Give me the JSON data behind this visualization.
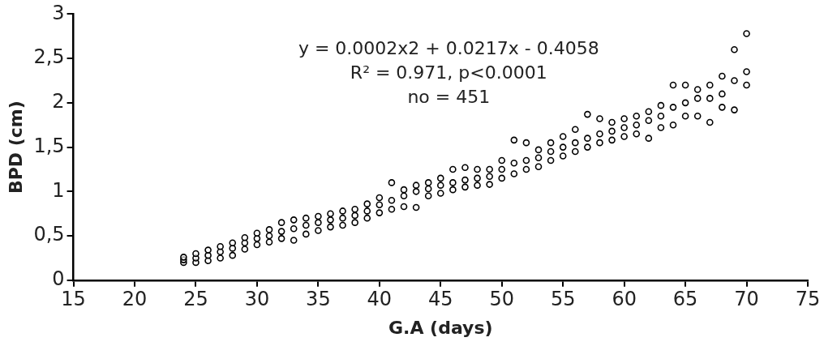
{
  "chart_data": {
    "type": "scatter",
    "xlabel": "G.A (days)",
    "ylabel": "BPD (cm)",
    "annotations": [
      "y = 0.0002x2 + 0.0217x - 0.4058",
      "R² = 0.971, p<0.0001",
      "no = 451"
    ],
    "xlim": [
      15,
      75
    ],
    "xticks": [
      15,
      20,
      25,
      30,
      35,
      40,
      45,
      50,
      55,
      60,
      65,
      70,
      75
    ],
    "ylim": [
      0,
      3
    ],
    "yticks": [
      0,
      {
        "value": 0.5,
        "label": "0,5"
      },
      1,
      {
        "value": 1.5,
        "label": "1,5"
      },
      2,
      {
        "value": 2.5,
        "label": "2,5"
      },
      3
    ],
    "grid": false,
    "legend": false,
    "marker": "circle",
    "series": [
      {
        "color": "#000000",
        "x": [
          24,
          24,
          24,
          25,
          25,
          25,
          26,
          26,
          26,
          27,
          27,
          27,
          28,
          28,
          28,
          29,
          29,
          29,
          30,
          30,
          30,
          31,
          31,
          31,
          32,
          32,
          32,
          33,
          33,
          33,
          34,
          34,
          34,
          35,
          35,
          35,
          36,
          36,
          36,
          37,
          37,
          37,
          38,
          38,
          38,
          39,
          39,
          39,
          40,
          40,
          40,
          41,
          41,
          41,
          42,
          42,
          42,
          43,
          43,
          43,
          44,
          44,
          44,
          45,
          45,
          45,
          46,
          46,
          46,
          47,
          47,
          47,
          48,
          48,
          48,
          49,
          49,
          49,
          50,
          50,
          50,
          51,
          51,
          51,
          52,
          52,
          52,
          53,
          53,
          53,
          54,
          54,
          54,
          55,
          55,
          55,
          56,
          56,
          56,
          57,
          57,
          57,
          58,
          58,
          58,
          59,
          59,
          59,
          60,
          60,
          60,
          61,
          61,
          61,
          62,
          62,
          62,
          63,
          63,
          63,
          64,
          64,
          64,
          65,
          65,
          65,
          66,
          66,
          66,
          67,
          67,
          67,
          68,
          68,
          68,
          69,
          69,
          69,
          70,
          70,
          70
        ],
        "values": [
          0.2,
          0.23,
          0.26,
          0.2,
          0.25,
          0.3,
          0.22,
          0.28,
          0.34,
          0.25,
          0.32,
          0.38,
          0.28,
          0.36,
          0.42,
          0.35,
          0.42,
          0.48,
          0.4,
          0.47,
          0.53,
          0.43,
          0.5,
          0.57,
          0.47,
          0.55,
          0.65,
          0.45,
          0.58,
          0.68,
          0.52,
          0.62,
          0.7,
          0.56,
          0.65,
          0.72,
          0.6,
          0.68,
          0.75,
          0.62,
          0.7,
          0.78,
          0.65,
          0.73,
          0.8,
          0.7,
          0.78,
          0.86,
          0.76,
          0.85,
          0.93,
          0.8,
          0.9,
          1.1,
          0.83,
          0.95,
          1.02,
          0.82,
          1.0,
          1.07,
          0.95,
          1.03,
          1.1,
          0.98,
          1.07,
          1.15,
          1.02,
          1.1,
          1.25,
          1.05,
          1.13,
          1.27,
          1.07,
          1.15,
          1.25,
          1.08,
          1.17,
          1.25,
          1.15,
          1.25,
          1.35,
          1.2,
          1.32,
          1.58,
          1.25,
          1.35,
          1.55,
          1.28,
          1.38,
          1.47,
          1.35,
          1.45,
          1.55,
          1.4,
          1.5,
          1.62,
          1.45,
          1.55,
          1.7,
          1.5,
          1.6,
          1.87,
          1.55,
          1.65,
          1.82,
          1.58,
          1.68,
          1.78,
          1.62,
          1.72,
          1.82,
          1.65,
          1.75,
          1.85,
          1.6,
          1.8,
          1.9,
          1.72,
          1.85,
          1.97,
          1.75,
          1.95,
          2.2,
          1.85,
          2.0,
          2.2,
          1.85,
          2.05,
          2.15,
          1.78,
          2.05,
          2.2,
          1.95,
          2.1,
          2.3,
          1.92,
          2.25,
          2.6,
          2.2,
          2.35,
          2.78
        ]
      }
    ]
  }
}
